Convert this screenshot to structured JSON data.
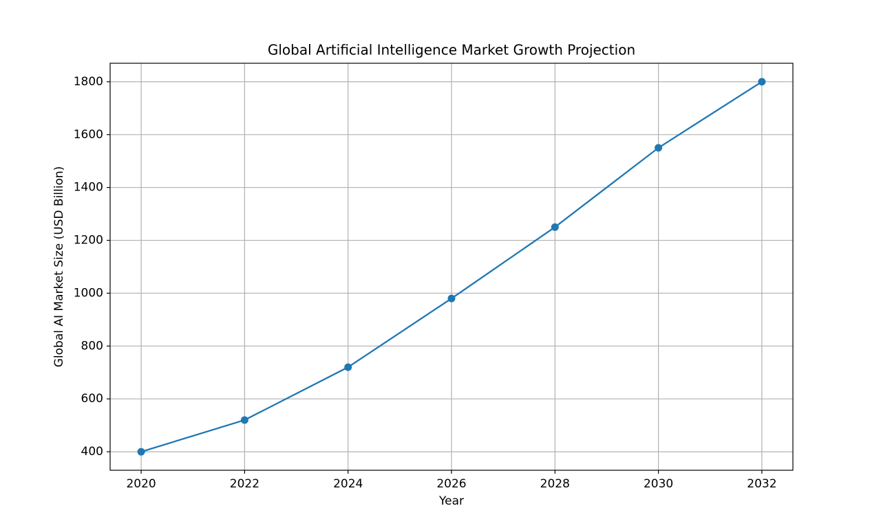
{
  "chart_data": {
    "type": "line",
    "title": "Global Artificial Intelligence Market Growth Projection",
    "x_label": "Year",
    "y_label": "Global AI Market Size (USD Billion)",
    "x": [
      2020,
      2022,
      2024,
      2026,
      2028,
      2030,
      2032
    ],
    "series": [
      {
        "name": "Global AI Market Size",
        "color": "#1f77b4",
        "values": [
          400,
          520,
          720,
          980,
          1250,
          1550,
          1800
        ]
      }
    ],
    "xlim": [
      2019.4,
      2032.6
    ],
    "xticks": [
      2020,
      2022,
      2024,
      2026,
      2028,
      2030,
      2032
    ],
    "ylim": [
      330,
      1870
    ],
    "yticks": [
      400,
      600,
      800,
      1000,
      1200,
      1400,
      1600,
      1800
    ],
    "grid": true,
    "markers": true
  }
}
